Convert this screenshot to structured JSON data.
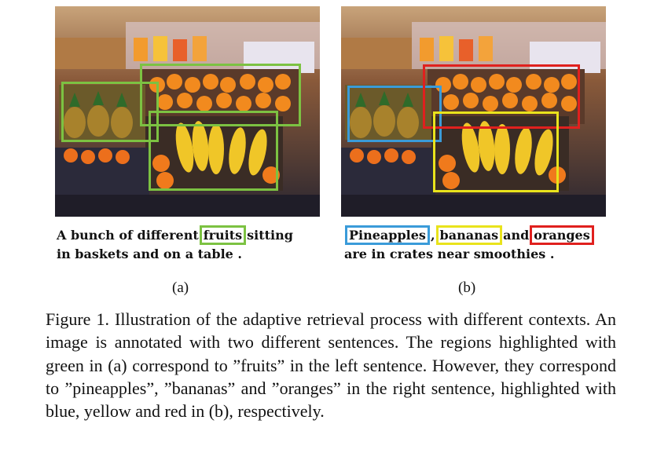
{
  "panels": [
    {
      "id": "a",
      "sentence": {
        "pre": "A bunch of different",
        "highlight": "fruits",
        "post": "sitting",
        "line2": "in baskets and on a table ."
      },
      "highlight_color": "#7cc242",
      "sublabel": "(a)"
    },
    {
      "id": "b",
      "sentence": {
        "w1": "Pineapples",
        "sep1": ",",
        "w2": "bananas",
        "sep2": "and",
        "w3": "oranges",
        "line2": "are in crates near smoothies ."
      },
      "colors": {
        "pineapples": "#3a9bd9",
        "bananas": "#e9e31c",
        "oranges": "#e0201e"
      },
      "sublabel": "(b)"
    }
  ],
  "figure_caption": "Figure 1. Illustration of the adaptive retrieval process with different contexts. An image is annotated with two different sentences. The regions highlighted with green in (a) correspond to ”fruits” in the left sentence. However, they correspond to ”pineapples”, ”bananas” and ”oranges” in the right sentence, highlighted with blue, yellow and red in (b), respectively."
}
